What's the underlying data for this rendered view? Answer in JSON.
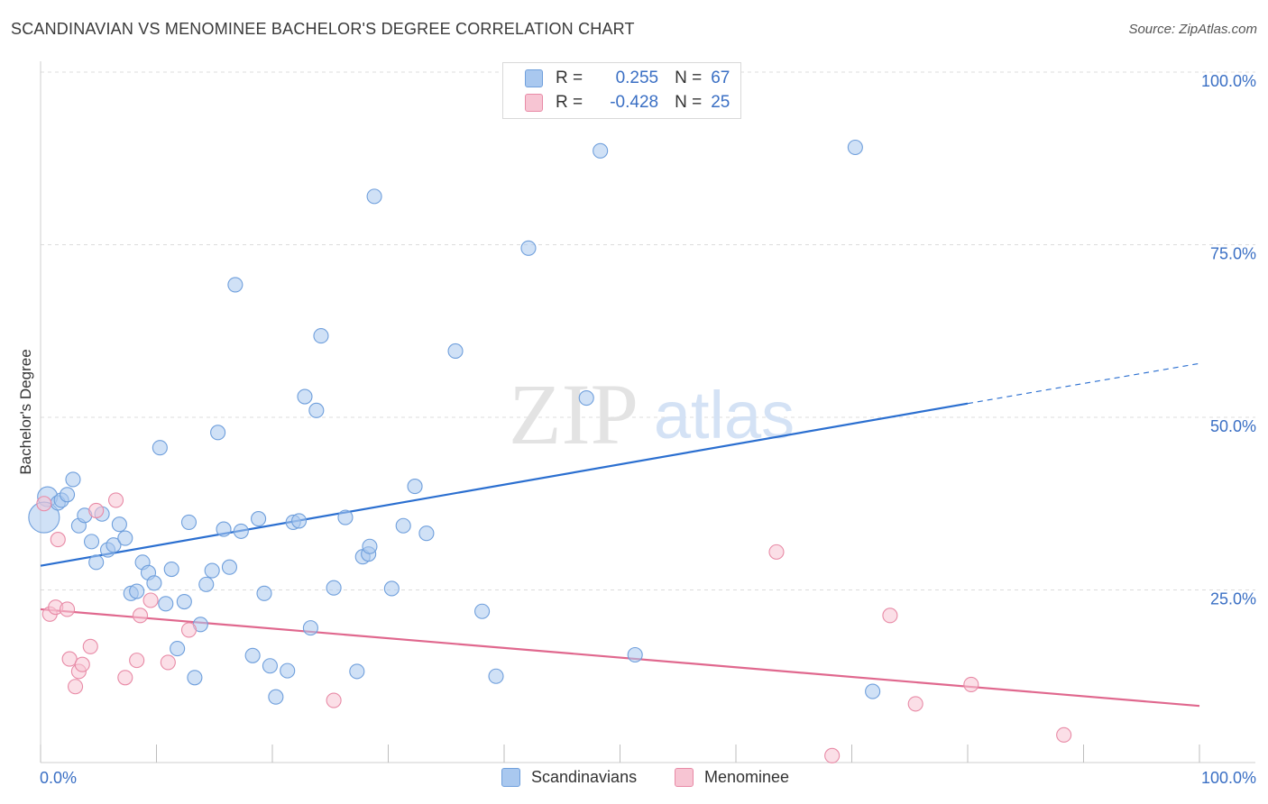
{
  "title": "SCANDINAVIAN VS MENOMINEE BACHELOR'S DEGREE CORRELATION CHART",
  "source": "Source: ZipAtlas.com",
  "watermark": {
    "zip": "ZIP",
    "atlas": "atlas"
  },
  "legend": {
    "rows": [
      {
        "r_label": "R =",
        "r_value": "0.255",
        "n_label": "N =",
        "n_value": "67",
        "color": "#a9c8ef",
        "border": "#6f9fdc"
      },
      {
        "r_label": "R =",
        "r_value": "-0.428",
        "n_label": "N =",
        "n_value": "25",
        "color": "#f7c5d3",
        "border": "#e88aa6"
      }
    ]
  },
  "bottom_legend": [
    {
      "label": "Scandinavians",
      "color": "#a9c8ef",
      "border": "#6f9fdc"
    },
    {
      "label": "Menominee",
      "color": "#f7c5d3",
      "border": "#e88aa6"
    }
  ],
  "chart_data": {
    "type": "scatter",
    "title": "SCANDINAVIAN VS MENOMINEE BACHELOR'S DEGREE CORRELATION CHART",
    "xlabel": "",
    "ylabel": "Bachelor's Degree",
    "xlim": [
      0,
      100
    ],
    "ylim": [
      0,
      100
    ],
    "x_tick_labels": [
      "0.0%",
      "100.0%"
    ],
    "y_tick_labels": [
      "100.0%",
      "75.0%",
      "50.0%",
      "25.0%"
    ],
    "y_ticks": [
      100,
      75,
      50,
      25
    ],
    "grid": true,
    "series": [
      {
        "name": "Scandinavians",
        "color": "#6f9fdc",
        "fill": "#a9c8ef",
        "line_color": "#2b6fd0",
        "trend": {
          "x0": 0,
          "y0": 28.5,
          "x1": 80,
          "y1": 52.0,
          "dash_x1": 100,
          "dash_y1": 57.8
        },
        "points": [
          [
            0.6,
            38.5
          ],
          [
            0.3,
            35.5
          ],
          [
            1.5,
            37.6
          ],
          [
            1.8,
            38.0
          ],
          [
            2.3,
            38.8
          ],
          [
            2.8,
            41.0
          ],
          [
            3.3,
            34.3
          ],
          [
            3.8,
            35.8
          ],
          [
            4.4,
            32.0
          ],
          [
            4.8,
            29.0
          ],
          [
            5.3,
            36.0
          ],
          [
            5.8,
            30.8
          ],
          [
            6.3,
            31.5
          ],
          [
            6.8,
            34.5
          ],
          [
            7.3,
            32.5
          ],
          [
            7.8,
            24.5
          ],
          [
            8.3,
            24.8
          ],
          [
            8.8,
            29.0
          ],
          [
            9.3,
            27.5
          ],
          [
            9.8,
            26.0
          ],
          [
            10.3,
            45.6
          ],
          [
            10.8,
            23.0
          ],
          [
            11.3,
            28.0
          ],
          [
            11.8,
            16.5
          ],
          [
            12.4,
            23.3
          ],
          [
            12.8,
            34.8
          ],
          [
            13.3,
            12.3
          ],
          [
            13.8,
            20.0
          ],
          [
            14.3,
            25.8
          ],
          [
            14.8,
            27.8
          ],
          [
            15.3,
            47.8
          ],
          [
            15.8,
            33.8
          ],
          [
            16.3,
            28.3
          ],
          [
            16.8,
            69.2
          ],
          [
            17.3,
            33.5
          ],
          [
            18.3,
            15.5
          ],
          [
            18.8,
            35.3
          ],
          [
            19.3,
            24.5
          ],
          [
            19.8,
            14.0
          ],
          [
            20.3,
            9.5
          ],
          [
            21.3,
            13.3
          ],
          [
            21.8,
            34.8
          ],
          [
            22.3,
            35.0
          ],
          [
            22.8,
            53.0
          ],
          [
            23.3,
            19.5
          ],
          [
            23.8,
            51.0
          ],
          [
            24.2,
            61.8
          ],
          [
            25.3,
            25.3
          ],
          [
            26.3,
            35.5
          ],
          [
            27.3,
            13.2
          ],
          [
            27.8,
            29.8
          ],
          [
            28.3,
            30.2
          ],
          [
            28.4,
            31.3
          ],
          [
            28.8,
            82.0
          ],
          [
            30.3,
            25.2
          ],
          [
            31.3,
            34.3
          ],
          [
            32.3,
            40.0
          ],
          [
            33.3,
            33.2
          ],
          [
            35.8,
            59.6
          ],
          [
            38.1,
            21.9
          ],
          [
            39.3,
            12.5
          ],
          [
            42.1,
            74.5
          ],
          [
            47.1,
            52.8
          ],
          [
            48.3,
            88.6
          ],
          [
            51.3,
            15.6
          ],
          [
            70.3,
            89.1
          ],
          [
            71.8,
            10.3
          ]
        ]
      },
      {
        "name": "Menominee",
        "color": "#e88aa6",
        "fill": "#f7c5d3",
        "line_color": "#e0688e",
        "trend": {
          "x0": 0,
          "y0": 22.2,
          "x1": 100,
          "y1": 8.2
        },
        "points": [
          [
            0.3,
            37.5
          ],
          [
            0.8,
            21.5
          ],
          [
            1.3,
            22.5
          ],
          [
            1.5,
            32.3
          ],
          [
            2.3,
            22.2
          ],
          [
            2.5,
            15.0
          ],
          [
            3.0,
            11.0
          ],
          [
            3.3,
            13.2
          ],
          [
            3.6,
            14.2
          ],
          [
            4.3,
            16.8
          ],
          [
            4.8,
            36.5
          ],
          [
            6.5,
            38.0
          ],
          [
            7.3,
            12.3
          ],
          [
            8.3,
            14.8
          ],
          [
            8.6,
            21.3
          ],
          [
            9.5,
            23.5
          ],
          [
            11.0,
            14.5
          ],
          [
            12.8,
            19.2
          ],
          [
            25.3,
            9.0
          ],
          [
            63.5,
            30.5
          ],
          [
            68.3,
            1.0
          ],
          [
            73.3,
            21.3
          ],
          [
            75.5,
            8.5
          ],
          [
            80.3,
            11.3
          ],
          [
            88.3,
            4.0
          ]
        ]
      }
    ]
  }
}
